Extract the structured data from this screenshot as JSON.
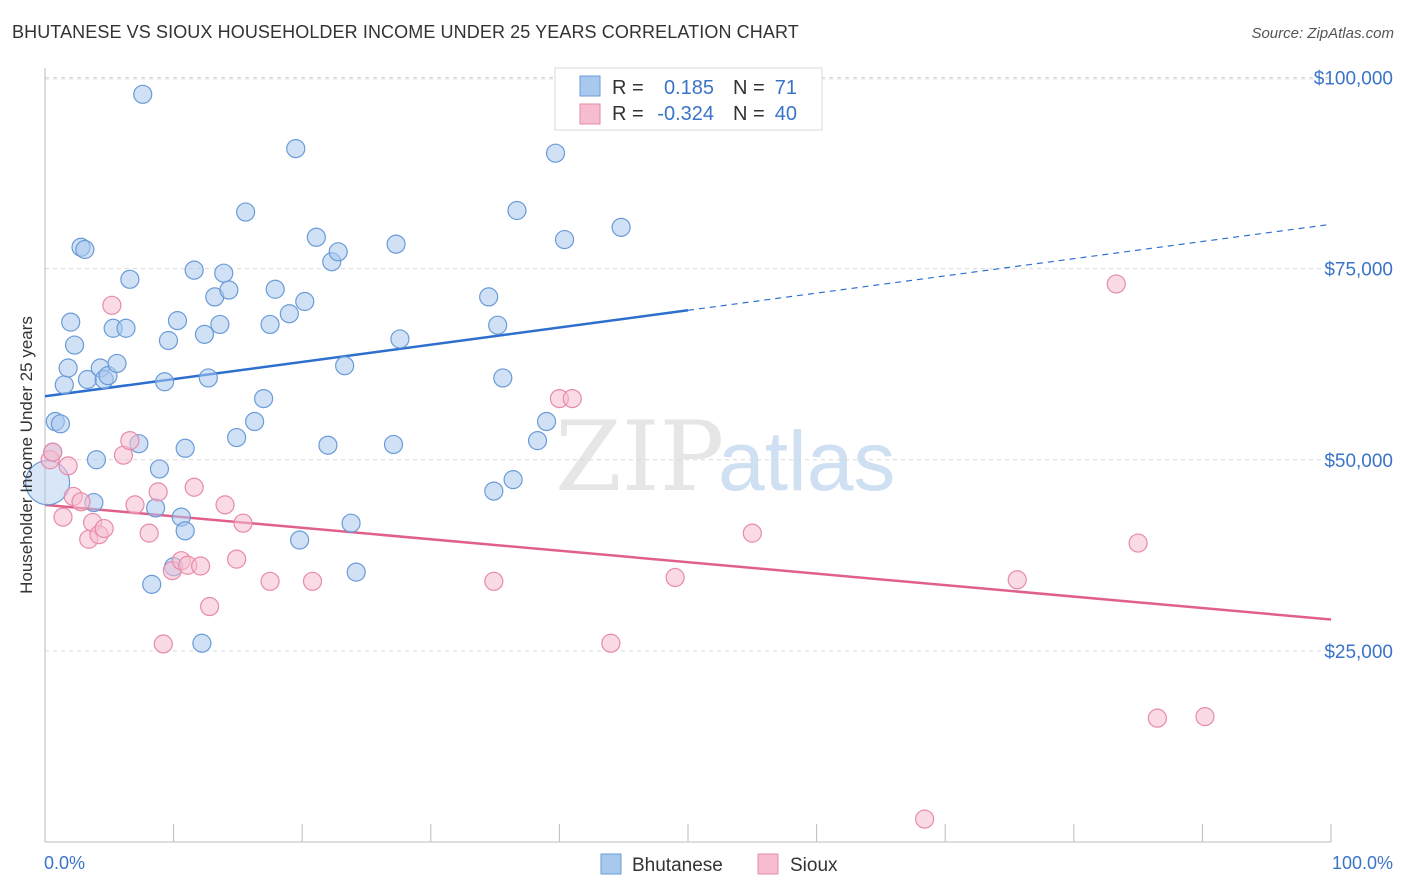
{
  "title": "BHUTANESE VS SIOUX HOUSEHOLDER INCOME UNDER 25 YEARS CORRELATION CHART",
  "source": "Source: ZipAtlas.com",
  "watermark": {
    "zip": "ZIP",
    "atlas": "atlas"
  },
  "legend_box": {
    "rows": [
      {
        "r_label": "R =",
        "r_value": "0.185",
        "n_label": "N =",
        "n_value": "71"
      },
      {
        "r_label": "R =",
        "r_value": "-0.324",
        "n_label": "N =",
        "n_value": "40"
      }
    ]
  },
  "bottom_legend": [
    "Bhutanese",
    "Sioux"
  ],
  "colors": {
    "bhutanese_fill": "#a9c8ee",
    "bhutanese_stroke": "#6a9bd8",
    "bhutanese_line": "#2d6fce",
    "sioux_fill": "#f6bdd0",
    "sioux_stroke": "#e88aaa",
    "sioux_line": "#e0608a",
    "tick_text": "#3a74c9"
  },
  "chart_data": {
    "type": "scatter",
    "title": "BHUTANESE VS SIOUX HOUSEHOLDER INCOME UNDER 25 YEARS CORRELATION CHART",
    "xlabel": "",
    "ylabel": "Householder Income Under 25 years",
    "xlim": [
      0,
      100
    ],
    "ylim": [
      0,
      102000
    ],
    "x_tick_labels": [
      "0.0%",
      "100.0%"
    ],
    "y_ticks": [
      25000,
      50000,
      75000,
      100000
    ],
    "y_tick_labels": [
      "$25,000",
      "$50,000",
      "$75,000",
      "$100,000"
    ],
    "grid": true,
    "legend": "top-center",
    "series": [
      {
        "name": "Bhutanese",
        "r": 0.185,
        "n": 71,
        "trend": {
          "x": [
            0,
            100
          ],
          "y": [
            58300,
            80800
          ],
          "solid_until_x": 50
        },
        "points": [
          [
            0.6,
            51000
          ],
          [
            0.8,
            55000
          ],
          [
            1.2,
            54700
          ],
          [
            1.5,
            59800
          ],
          [
            1.8,
            62000
          ],
          [
            2.0,
            68000
          ],
          [
            2.3,
            65000
          ],
          [
            2.8,
            77800
          ],
          [
            3.1,
            77500
          ],
          [
            3.3,
            60500
          ],
          [
            3.8,
            44400
          ],
          [
            4.0,
            50000
          ],
          [
            4.3,
            62000
          ],
          [
            4.6,
            60500
          ],
          [
            4.9,
            61000
          ],
          [
            5.3,
            67200
          ],
          [
            5.6,
            62600
          ],
          [
            6.3,
            67200
          ],
          [
            6.6,
            73600
          ],
          [
            7.3,
            52100
          ],
          [
            7.6,
            97800
          ],
          [
            8.3,
            33700
          ],
          [
            8.6,
            43700
          ],
          [
            8.9,
            48800
          ],
          [
            9.3,
            60200
          ],
          [
            9.6,
            65600
          ],
          [
            10.0,
            36000
          ],
          [
            10.3,
            68200
          ],
          [
            10.6,
            42500
          ],
          [
            10.9,
            40700
          ],
          [
            10.9,
            51500
          ],
          [
            11.6,
            74800
          ],
          [
            12.2,
            26000
          ],
          [
            12.4,
            66400
          ],
          [
            12.7,
            60700
          ],
          [
            13.2,
            71300
          ],
          [
            13.6,
            67700
          ],
          [
            13.9,
            74400
          ],
          [
            14.3,
            72200
          ],
          [
            14.9,
            52900
          ],
          [
            15.6,
            82400
          ],
          [
            16.3,
            55000
          ],
          [
            17.0,
            58000
          ],
          [
            17.5,
            67700
          ],
          [
            17.9,
            72300
          ],
          [
            19.0,
            69100
          ],
          [
            19.5,
            90700
          ],
          [
            19.8,
            39500
          ],
          [
            20.2,
            70700
          ],
          [
            21.1,
            79100
          ],
          [
            22.0,
            51900
          ],
          [
            22.3,
            75900
          ],
          [
            22.8,
            77200
          ],
          [
            23.3,
            62300
          ],
          [
            23.8,
            41700
          ],
          [
            24.2,
            35300
          ],
          [
            27.1,
            52000
          ],
          [
            27.3,
            78200
          ],
          [
            27.6,
            65800
          ],
          [
            34.5,
            71300
          ],
          [
            34.9,
            45900
          ],
          [
            35.2,
            67600
          ],
          [
            35.6,
            60700
          ],
          [
            36.4,
            47400
          ],
          [
            36.7,
            82600
          ],
          [
            38.3,
            52500
          ],
          [
            39.0,
            55000
          ],
          [
            39.7,
            90100
          ],
          [
            40.4,
            78800
          ],
          [
            44.8,
            80400
          ],
          [
            0.2,
            47000
          ]
        ]
      },
      {
        "name": "Sioux",
        "r": -0.324,
        "n": 40,
        "trend": {
          "x": [
            0,
            100
          ],
          "y": [
            44100,
            29100
          ]
        },
        "points": [
          [
            0.4,
            50000
          ],
          [
            0.6,
            51000
          ],
          [
            1.4,
            42500
          ],
          [
            1.8,
            49200
          ],
          [
            2.2,
            45200
          ],
          [
            2.8,
            44500
          ],
          [
            3.4,
            39600
          ],
          [
            3.7,
            41800
          ],
          [
            4.2,
            40200
          ],
          [
            4.6,
            41000
          ],
          [
            5.2,
            70200
          ],
          [
            6.1,
            50600
          ],
          [
            6.6,
            52500
          ],
          [
            7.0,
            44100
          ],
          [
            8.1,
            40400
          ],
          [
            8.8,
            45800
          ],
          [
            9.2,
            25900
          ],
          [
            9.9,
            35500
          ],
          [
            10.6,
            36800
          ],
          [
            11.1,
            36200
          ],
          [
            11.6,
            46400
          ],
          [
            12.1,
            36100
          ],
          [
            12.8,
            30800
          ],
          [
            14.0,
            44100
          ],
          [
            14.9,
            37000
          ],
          [
            15.4,
            41700
          ],
          [
            17.5,
            34100
          ],
          [
            20.8,
            34100
          ],
          [
            34.9,
            34100
          ],
          [
            40.0,
            58000
          ],
          [
            41.0,
            58000
          ],
          [
            44.0,
            26000
          ],
          [
            49.0,
            34600
          ],
          [
            55.0,
            40400
          ],
          [
            68.4,
            3000
          ],
          [
            75.6,
            34300
          ],
          [
            83.3,
            73000
          ],
          [
            85.0,
            39100
          ],
          [
            86.5,
            16200
          ],
          [
            90.2,
            16400
          ]
        ]
      }
    ]
  }
}
